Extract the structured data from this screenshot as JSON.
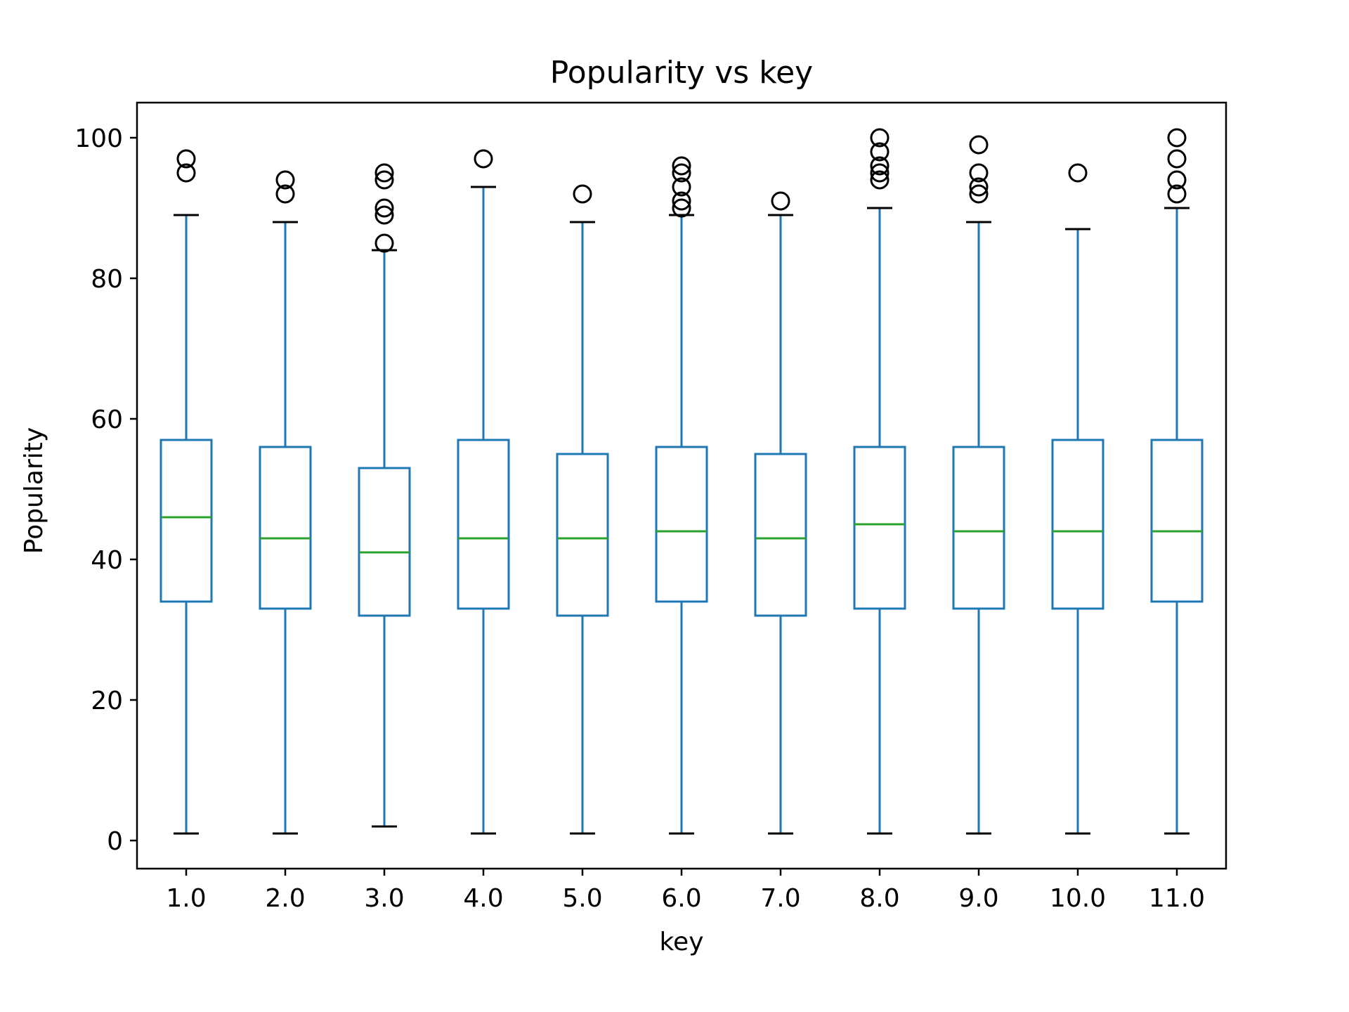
{
  "chart_data": {
    "type": "box",
    "title": "Popularity vs key",
    "xlabel": "key",
    "ylabel": "Popularity",
    "ylim": [
      -4,
      105
    ],
    "yticks": [
      0,
      20,
      40,
      60,
      80,
      100
    ],
    "grid": false,
    "legend": "none",
    "colors": {
      "box": "#1f77b4",
      "median": "#2ca02c",
      "whisker": "#1f77b4",
      "cap": "#000000",
      "flier": "#000000"
    },
    "categories": [
      "1.0",
      "2.0",
      "3.0",
      "4.0",
      "5.0",
      "6.0",
      "7.0",
      "8.0",
      "9.0",
      "10.0",
      "11.0"
    ],
    "boxes": [
      {
        "category": "1.0",
        "whislo": 1,
        "q1": 34,
        "med": 46,
        "q3": 57,
        "whishi": 89,
        "fliers": [
          95,
          97
        ]
      },
      {
        "category": "2.0",
        "whislo": 1,
        "q1": 33,
        "med": 43,
        "q3": 56,
        "whishi": 88,
        "fliers": [
          92,
          94
        ]
      },
      {
        "category": "3.0",
        "whislo": 2,
        "q1": 32,
        "med": 41,
        "q3": 53,
        "whishi": 84,
        "fliers": [
          85,
          89,
          90,
          94,
          95
        ]
      },
      {
        "category": "4.0",
        "whislo": 1,
        "q1": 33,
        "med": 43,
        "q3": 57,
        "whishi": 93,
        "fliers": [
          97
        ]
      },
      {
        "category": "5.0",
        "whislo": 1,
        "q1": 32,
        "med": 43,
        "q3": 55,
        "whishi": 88,
        "fliers": [
          92
        ]
      },
      {
        "category": "6.0",
        "whislo": 1,
        "q1": 34,
        "med": 44,
        "q3": 56,
        "whishi": 89,
        "fliers": [
          90,
          91,
          93,
          95,
          96
        ]
      },
      {
        "category": "7.0",
        "whislo": 1,
        "q1": 32,
        "med": 43,
        "q3": 55,
        "whishi": 89,
        "fliers": [
          91
        ]
      },
      {
        "category": "8.0",
        "whislo": 1,
        "q1": 33,
        "med": 45,
        "q3": 56,
        "whishi": 90,
        "fliers": [
          94,
          95,
          96,
          98,
          100
        ]
      },
      {
        "category": "9.0",
        "whislo": 1,
        "q1": 33,
        "med": 44,
        "q3": 56,
        "whishi": 88,
        "fliers": [
          92,
          93,
          95,
          99
        ]
      },
      {
        "category": "10.0",
        "whislo": 1,
        "q1": 33,
        "med": 44,
        "q3": 57,
        "whishi": 87,
        "fliers": [
          95
        ]
      },
      {
        "category": "11.0",
        "whislo": 1,
        "q1": 34,
        "med": 44,
        "q3": 57,
        "whishi": 90,
        "fliers": [
          92,
          94,
          97,
          100
        ]
      }
    ]
  }
}
